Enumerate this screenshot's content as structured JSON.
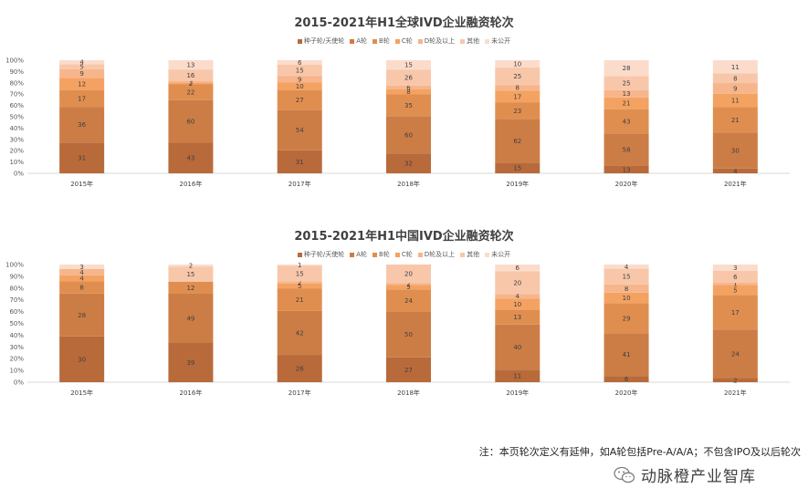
{
  "chart_data": [
    {
      "type": "bar",
      "stacked": "percent",
      "title": "2015-2021年H1全球IVD企业融资轮次",
      "categories": [
        "2015年",
        "2016年",
        "2017年",
        "2018年",
        "2019年",
        "2020年",
        "2021年"
      ],
      "yticks": [
        "0%",
        "10%",
        "20%",
        "30%",
        "40%",
        "50%",
        "60%",
        "70%",
        "80%",
        "90%",
        "100%"
      ],
      "ylim": [
        0,
        100
      ],
      "series": [
        {
          "name": "种子轮/天使轮",
          "color": "#b86a3b",
          "values": [
            31,
            43,
            31,
            32,
            15,
            13,
            4
          ]
        },
        {
          "name": "A轮",
          "color": "#cc7d45",
          "values": [
            36,
            60,
            54,
            60,
            62,
            58,
            30
          ]
        },
        {
          "name": "B轮",
          "color": "#e08e4f",
          "values": [
            17,
            22,
            27,
            35,
            23,
            43,
            21
          ]
        },
        {
          "name": "C轮",
          "color": "#f4a261",
          "values": [
            12,
            2,
            10,
            8,
            17,
            21,
            11
          ]
        },
        {
          "name": "D轮及以上",
          "color": "#f6b58b",
          "values": [
            9,
            3,
            9,
            6,
            8,
            13,
            9
          ]
        },
        {
          "name": "其他",
          "color": "#f8c7aa",
          "values": [
            5,
            16,
            15,
            26,
            25,
            25,
            8
          ]
        },
        {
          "name": "未公开",
          "color": "#fbdccb",
          "values": [
            4,
            13,
            6,
            15,
            10,
            28,
            11
          ]
        }
      ]
    },
    {
      "type": "bar",
      "stacked": "percent",
      "title": "2015-2021年H1中国IVD企业融资轮次",
      "categories": [
        "2015年",
        "2016年",
        "2017年",
        "2018年",
        "2019年",
        "2020年",
        "2021年"
      ],
      "yticks": [
        "0%",
        "10%",
        "20%",
        "30%",
        "40%",
        "50%",
        "60%",
        "70%",
        "80%",
        "90%",
        "100%"
      ],
      "ylim": [
        0,
        100
      ],
      "series": [
        {
          "name": "种子轮/天使轮",
          "color": "#b86a3b",
          "values": [
            30,
            39,
            26,
            27,
            11,
            6,
            2
          ]
        },
        {
          "name": "A轮",
          "color": "#cc7d45",
          "values": [
            28,
            49,
            42,
            50,
            40,
            41,
            24
          ]
        },
        {
          "name": "B轮",
          "color": "#e08e4f",
          "values": [
            8,
            12,
            21,
            24,
            13,
            29,
            17
          ]
        },
        {
          "name": "C轮",
          "color": "#f4a261",
          "values": [
            4,
            0,
            5,
            5,
            10,
            10,
            5
          ]
        },
        {
          "name": "D轮及以上",
          "color": "#f6b58b",
          "values": [
            4,
            0,
            2,
            2,
            4,
            8,
            1
          ]
        },
        {
          "name": "其他",
          "color": "#f8c7aa",
          "values": [
            0,
            15,
            15,
            20,
            20,
            15,
            6
          ]
        },
        {
          "name": "未公开",
          "color": "#fbdccb",
          "values": [
            3,
            2,
            1,
            0,
            6,
            4,
            3
          ]
        }
      ]
    }
  ],
  "footer": {
    "note": "注：本页轮次定义有延伸，如A轮包括Pre-A/A/A；不包含IPO及以后轮次",
    "brand": "动脉橙产业智库"
  }
}
